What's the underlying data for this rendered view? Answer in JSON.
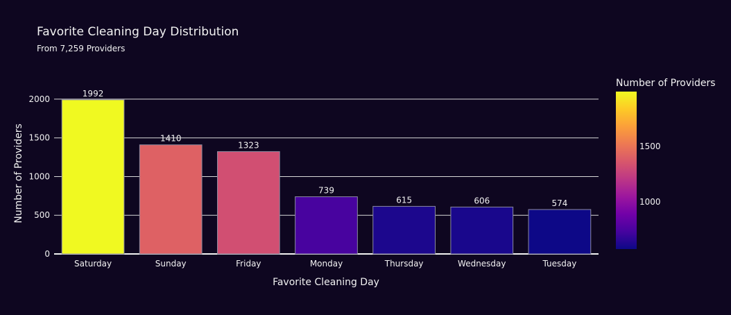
{
  "chart_data": {
    "type": "bar",
    "title": "Favorite Cleaning Day Distribution",
    "subtitle": "From 7,259 Providers",
    "xlabel": "Favorite Cleaning Day",
    "ylabel": "Number of Providers",
    "categories": [
      "Saturday",
      "Sunday",
      "Friday",
      "Monday",
      "Thursday",
      "Wednesday",
      "Tuesday"
    ],
    "values": [
      1992,
      1410,
      1323,
      739,
      615,
      606,
      574
    ],
    "ylim": [
      0,
      2080
    ],
    "yticks": [
      0,
      500,
      1000,
      1500,
      2000
    ],
    "grid": true,
    "colorbar": {
      "title": "Number of Providers",
      "min": 574,
      "max": 1992,
      "ticks": [
        1000,
        1500
      ],
      "colorscale": [
        "#0d0887",
        "#46039f",
        "#7201a8",
        "#9c179e",
        "#bd3786",
        "#d8576b",
        "#ed7953",
        "#fb9f3a",
        "#fdca26",
        "#f0f921"
      ]
    }
  },
  "colors": {
    "background": "#0e0620",
    "text": "#f2f2f2",
    "grid": "#d9d9d9",
    "bar_outline": "#8b8ba0"
  }
}
